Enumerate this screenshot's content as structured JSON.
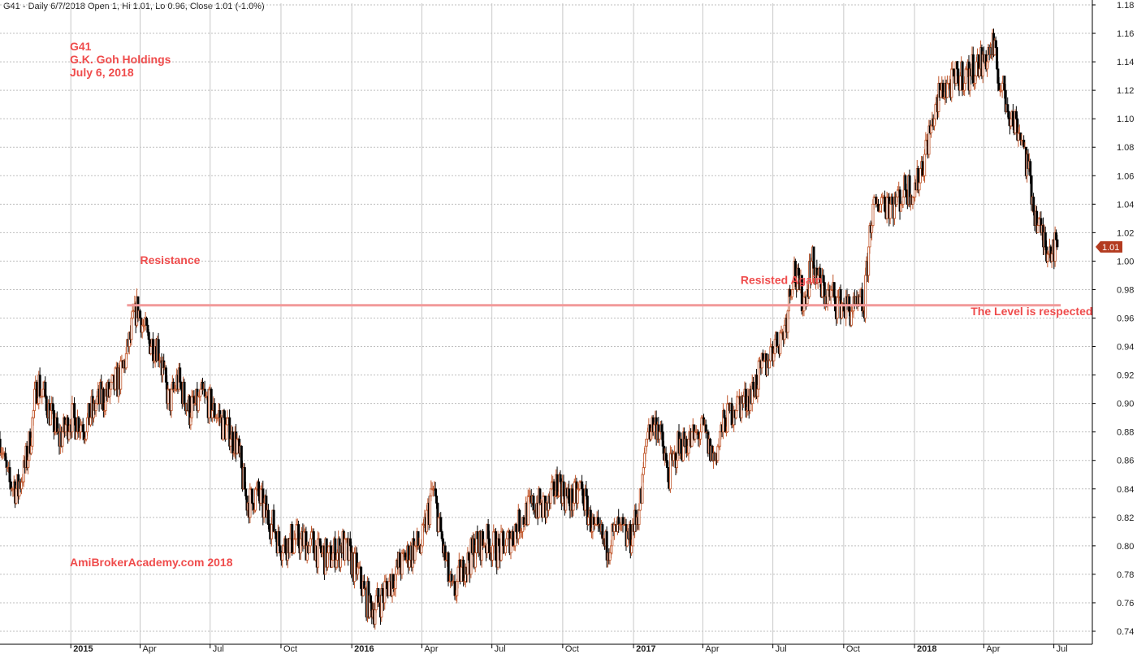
{
  "header": {
    "text": "G41 - Daily 6/7/2018 Open 1, Hi 1.01, Lo 0.96, Close 1.01 (-1.0%)"
  },
  "title_block": [
    "G41",
    "G.K. Goh Holdings",
    "July 6, 2018"
  ],
  "watermark": "AmiBrokerAcademy.com  2018",
  "colors": {
    "up": "#c0562b",
    "down": "#000000",
    "resistance_line": "#f29a9a",
    "annotation": "#ef4c4c",
    "last_price_marker": "#b33a1f"
  },
  "chart_data": {
    "type": "candlestick",
    "title": "",
    "xlabel": "",
    "ylabel": "",
    "ylim": [
      0.74,
      1.18
    ],
    "y_ticks": [
      0.74,
      0.76,
      0.78,
      0.8,
      0.82,
      0.84,
      0.86,
      0.88,
      0.9,
      0.92,
      0.94,
      0.96,
      0.98,
      1.0,
      1.02,
      1.04,
      1.06,
      1.08,
      1.1,
      1.12,
      1.14,
      1.16,
      1.18
    ],
    "y_tick_labels": [
      "0.74",
      "0.76",
      "0.78",
      "0.80",
      "0.82",
      "0.84",
      "0.86",
      "0.88",
      "0.90",
      "0.92",
      "0.94",
      "0.96",
      "0.98",
      "1.00",
      "1.02",
      "1.04",
      "1.06",
      "1.08",
      "1.10",
      "1.12",
      "1.14",
      "1.16",
      "1.18"
    ],
    "x_start": "2014-10-01",
    "x_end": "2018-08-20",
    "x_ticks": [
      {
        "date": "2015-01-01",
        "label": "2015",
        "year": true
      },
      {
        "date": "2015-04-01",
        "label": "Apr",
        "year": false
      },
      {
        "date": "2015-07-01",
        "label": "Jul",
        "year": false
      },
      {
        "date": "2015-10-01",
        "label": "Oct",
        "year": false
      },
      {
        "date": "2016-01-01",
        "label": "2016",
        "year": true
      },
      {
        "date": "2016-04-01",
        "label": "Apr",
        "year": false
      },
      {
        "date": "2016-07-01",
        "label": "Jul",
        "year": false
      },
      {
        "date": "2016-10-01",
        "label": "Oct",
        "year": false
      },
      {
        "date": "2017-01-01",
        "label": "2017",
        "year": true
      },
      {
        "date": "2017-04-01",
        "label": "Apr",
        "year": false
      },
      {
        "date": "2017-07-01",
        "label": "Jul",
        "year": false
      },
      {
        "date": "2017-10-01",
        "label": "Oct",
        "year": false
      },
      {
        "date": "2018-01-01",
        "label": "2018",
        "year": true
      },
      {
        "date": "2018-04-01",
        "label": "Apr",
        "year": false
      },
      {
        "date": "2018-07-01",
        "label": "Jul",
        "year": false
      }
    ],
    "price_path": [
      {
        "date": "2014-10-01",
        "close": 0.875
      },
      {
        "date": "2014-10-12",
        "close": 0.845
      },
      {
        "date": "2014-10-25",
        "close": 0.84
      },
      {
        "date": "2014-11-06",
        "close": 0.862
      },
      {
        "date": "2014-11-18",
        "close": 0.915
      },
      {
        "date": "2014-12-01",
        "close": 0.9
      },
      {
        "date": "2014-12-15",
        "close": 0.875
      },
      {
        "date": "2015-01-01",
        "close": 0.89
      },
      {
        "date": "2015-01-20",
        "close": 0.885
      },
      {
        "date": "2015-02-05",
        "close": 0.9
      },
      {
        "date": "2015-02-25",
        "close": 0.91
      },
      {
        "date": "2015-03-10",
        "close": 0.925
      },
      {
        "date": "2015-03-28",
        "close": 0.968
      },
      {
        "date": "2015-04-10",
        "close": 0.945
      },
      {
        "date": "2015-04-25",
        "close": 0.94
      },
      {
        "date": "2015-05-08",
        "close": 0.9
      },
      {
        "date": "2015-05-20",
        "close": 0.915
      },
      {
        "date": "2015-06-05",
        "close": 0.895
      },
      {
        "date": "2015-06-20",
        "close": 0.905
      },
      {
        "date": "2015-07-05",
        "close": 0.895
      },
      {
        "date": "2015-07-20",
        "close": 0.885
      },
      {
        "date": "2015-08-05",
        "close": 0.87
      },
      {
        "date": "2015-08-18",
        "close": 0.83
      },
      {
        "date": "2015-09-01",
        "close": 0.835
      },
      {
        "date": "2015-09-15",
        "close": 0.82
      },
      {
        "date": "2015-10-01",
        "close": 0.8
      },
      {
        "date": "2015-10-20",
        "close": 0.805
      },
      {
        "date": "2015-11-10",
        "close": 0.8
      },
      {
        "date": "2015-12-01",
        "close": 0.79
      },
      {
        "date": "2015-12-20",
        "close": 0.8
      },
      {
        "date": "2016-01-10",
        "close": 0.78
      },
      {
        "date": "2016-01-25",
        "close": 0.755
      },
      {
        "date": "2016-02-10",
        "close": 0.765
      },
      {
        "date": "2016-02-25",
        "close": 0.78
      },
      {
        "date": "2016-03-15",
        "close": 0.795
      },
      {
        "date": "2016-04-01",
        "close": 0.8
      },
      {
        "date": "2016-04-15",
        "close": 0.84
      },
      {
        "date": "2016-04-28",
        "close": 0.8
      },
      {
        "date": "2016-05-10",
        "close": 0.765
      },
      {
        "date": "2016-05-25",
        "close": 0.785
      },
      {
        "date": "2016-06-10",
        "close": 0.8
      },
      {
        "date": "2016-06-25",
        "close": 0.805
      },
      {
        "date": "2016-07-10",
        "close": 0.795
      },
      {
        "date": "2016-07-25",
        "close": 0.805
      },
      {
        "date": "2016-08-10",
        "close": 0.82
      },
      {
        "date": "2016-08-28",
        "close": 0.83
      },
      {
        "date": "2016-09-10",
        "close": 0.825
      },
      {
        "date": "2016-09-25",
        "close": 0.845
      },
      {
        "date": "2016-10-10",
        "close": 0.83
      },
      {
        "date": "2016-10-25",
        "close": 0.84
      },
      {
        "date": "2016-11-10",
        "close": 0.81
      },
      {
        "date": "2016-11-25",
        "close": 0.8
      },
      {
        "date": "2016-12-10",
        "close": 0.81
      },
      {
        "date": "2016-12-28",
        "close": 0.805
      },
      {
        "date": "2017-01-10",
        "close": 0.83
      },
      {
        "date": "2017-01-20",
        "close": 0.885
      },
      {
        "date": "2017-02-01",
        "close": 0.885
      },
      {
        "date": "2017-02-15",
        "close": 0.85
      },
      {
        "date": "2017-03-01",
        "close": 0.87
      },
      {
        "date": "2017-03-15",
        "close": 0.875
      },
      {
        "date": "2017-04-01",
        "close": 0.88
      },
      {
        "date": "2017-04-15",
        "close": 0.86
      },
      {
        "date": "2017-05-01",
        "close": 0.89
      },
      {
        "date": "2017-05-15",
        "close": 0.9
      },
      {
        "date": "2017-06-01",
        "close": 0.905
      },
      {
        "date": "2017-06-15",
        "close": 0.92
      },
      {
        "date": "2017-07-01",
        "close": 0.94
      },
      {
        "date": "2017-07-15",
        "close": 0.95
      },
      {
        "date": "2017-07-28",
        "close": 0.995
      },
      {
        "date": "2017-08-10",
        "close": 0.97
      },
      {
        "date": "2017-08-20",
        "close": 1.0
      },
      {
        "date": "2017-09-01",
        "close": 0.98
      },
      {
        "date": "2017-09-15",
        "close": 0.975
      },
      {
        "date": "2017-10-01",
        "close": 0.97
      },
      {
        "date": "2017-10-15",
        "close": 0.965
      },
      {
        "date": "2017-10-28",
        "close": 0.97
      },
      {
        "date": "2017-11-05",
        "close": 1.03
      },
      {
        "date": "2017-11-20",
        "close": 1.045
      },
      {
        "date": "2017-12-05",
        "close": 1.04
      },
      {
        "date": "2017-12-20",
        "close": 1.05
      },
      {
        "date": "2018-01-01",
        "close": 1.05
      },
      {
        "date": "2018-01-12",
        "close": 1.07
      },
      {
        "date": "2018-01-25",
        "close": 1.1
      },
      {
        "date": "2018-02-05",
        "close": 1.12
      },
      {
        "date": "2018-02-20",
        "close": 1.125
      },
      {
        "date": "2018-03-05",
        "close": 1.13
      },
      {
        "date": "2018-03-20",
        "close": 1.135
      },
      {
        "date": "2018-04-01",
        "close": 1.14
      },
      {
        "date": "2018-04-12",
        "close": 1.15
      },
      {
        "date": "2018-04-25",
        "close": 1.12
      },
      {
        "date": "2018-05-08",
        "close": 1.1
      },
      {
        "date": "2018-05-20",
        "close": 1.09
      },
      {
        "date": "2018-06-01",
        "close": 1.05
      },
      {
        "date": "2018-06-12",
        "close": 1.02
      },
      {
        "date": "2018-06-25",
        "close": 1.01
      },
      {
        "date": "2018-07-06",
        "close": 1.01
      }
    ],
    "resistance": {
      "y": 0.969,
      "date_start": "2015-03-15",
      "date_end": "2018-07-10"
    },
    "last_price": {
      "value": 1.01,
      "label": "1.01"
    },
    "annotations": [
      {
        "text": "Resistance",
        "date": "2015-04-01",
        "y": 0.998
      },
      {
        "text": "Resisted Again",
        "date": "2017-05-20",
        "y": 0.984
      },
      {
        "text": "The Level is respected",
        "date": "2018-03-15",
        "y": 0.962
      }
    ]
  }
}
